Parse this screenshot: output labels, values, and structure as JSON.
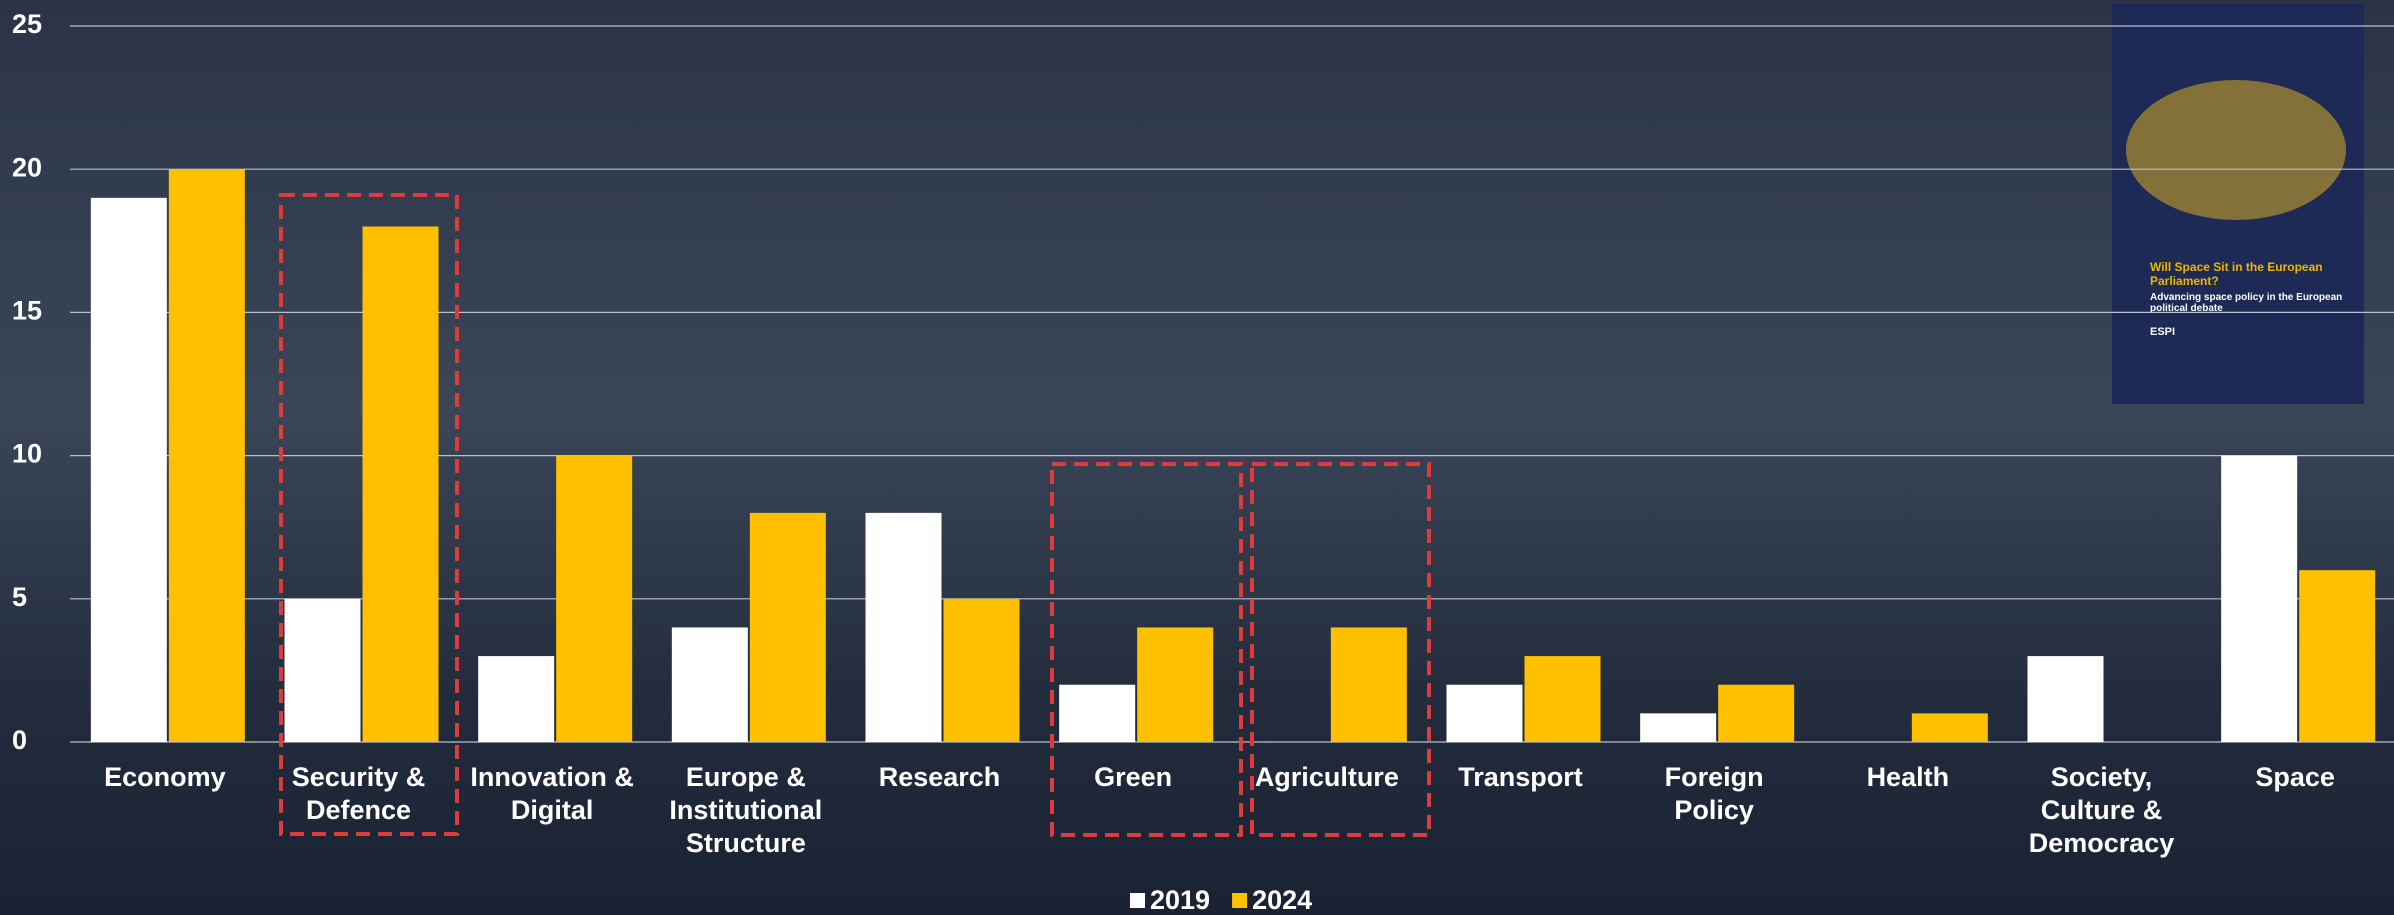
{
  "chart_data": {
    "type": "bar",
    "categories": [
      "Economy",
      "Security & Defence",
      "Innovation & Digital",
      "Europe & Institutional Structure",
      "Research",
      "Green",
      "Agriculture",
      "Transport",
      "Foreign Policy",
      "Health",
      "Society, Culture & Democracy",
      "Space"
    ],
    "series": [
      {
        "name": "2019",
        "color": "#ffffff",
        "values": [
          19,
          5,
          3,
          4,
          8,
          2,
          0,
          2,
          1,
          0,
          3,
          10
        ]
      },
      {
        "name": "2024",
        "color": "#ffc000",
        "values": [
          20,
          18,
          10,
          8,
          5,
          4,
          4,
          3,
          2,
          1,
          0,
          6
        ]
      }
    ],
    "ylim": [
      0,
      25
    ],
    "yticks": [
      0,
      5,
      10,
      15,
      20,
      25
    ],
    "grid": true,
    "legend": "bottom"
  },
  "book": {
    "title": "Will Space Sit in the European Parliament?",
    "subtitle": "Advancing space policy in the European political debate",
    "publisher": "ESPI"
  }
}
